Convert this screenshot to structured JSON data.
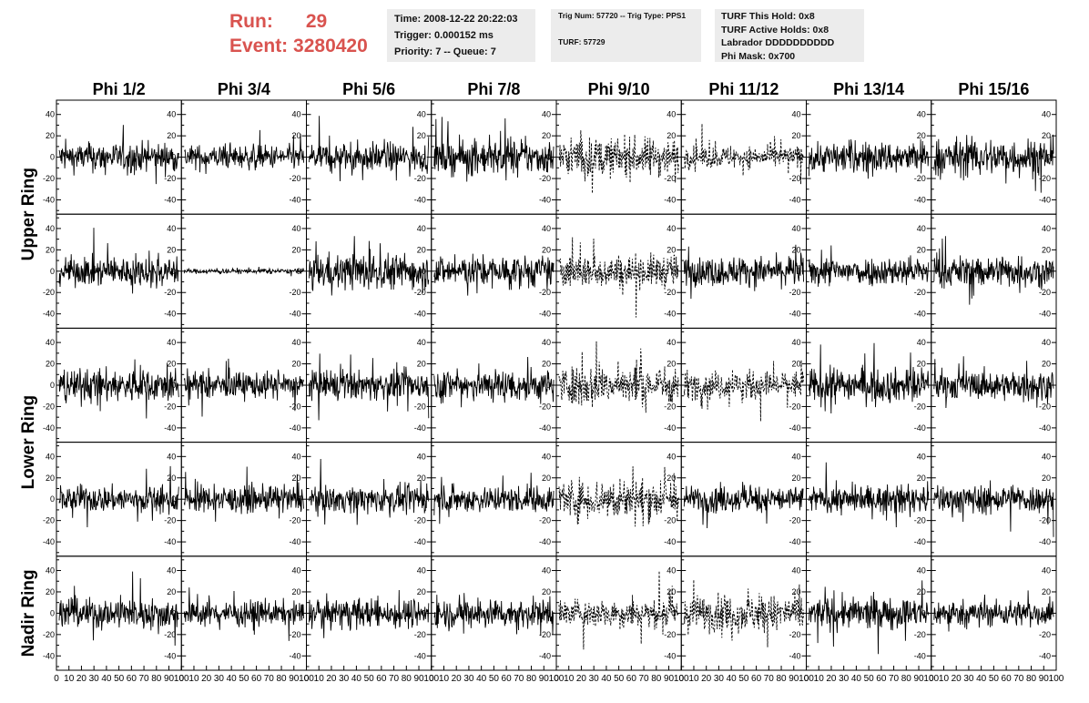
{
  "header": {
    "run_label": "Run:",
    "run_value": "29",
    "event_label": "Event:",
    "event_value": "3280420"
  },
  "info_time": {
    "time": "Time: 2008-12-22 20:22:03",
    "trigger": "Trigger: 0.000152 ms",
    "priority": "Priority: 7 -- Queue: 7"
  },
  "info_trig": {
    "trig": "Trig Num: 57720 -- Trig Type: PPS1",
    "turf": "TURF: 57729"
  },
  "info_turf": {
    "this_hold": "TURF This Hold: 0x8",
    "active_holds": "TURF Active Holds: 0x8",
    "labrador": "Labrador DDDDDDDDDD",
    "phi_mask": "Phi Mask: 0x700"
  },
  "chart_data": {
    "type": "line",
    "columns": [
      "Phi 1/2",
      "Phi 3/4",
      "Phi 5/6",
      "Phi 7/8",
      "Phi 9/10",
      "Phi 11/12",
      "Phi 13/14",
      "Phi 15/16"
    ],
    "row_groups": [
      {
        "label": "Upper Ring",
        "rows": [
          0,
          1
        ]
      },
      {
        "label": "Lower Ring",
        "rows": [
          2,
          3
        ]
      },
      {
        "label": "Nadir Ring",
        "rows": [
          4
        ]
      }
    ],
    "xlim": [
      0,
      100
    ],
    "ylim": [
      -50,
      50
    ],
    "x_ticks": [
      0,
      10,
      20,
      30,
      40,
      50,
      60,
      70,
      80,
      90,
      100
    ],
    "y_ticks": [
      -40,
      -20,
      0,
      20,
      40
    ],
    "dashed_columns": [
      4
    ],
    "dashed_cells": [
      [
        0,
        5
      ],
      [
        2,
        5
      ],
      [
        4,
        5
      ]
    ],
    "amplitude": [
      [
        12,
        10,
        12,
        14,
        16,
        9,
        13,
        16
      ],
      [
        12,
        2,
        15,
        13,
        14,
        12,
        12,
        13
      ],
      [
        14,
        11,
        12,
        14,
        16,
        12,
        14,
        12
      ],
      [
        11,
        11,
        11,
        11,
        17,
        11,
        11,
        12
      ],
      [
        13,
        10,
        12,
        12,
        12,
        15,
        13,
        11
      ]
    ],
    "samples_per_trace": 260
  }
}
